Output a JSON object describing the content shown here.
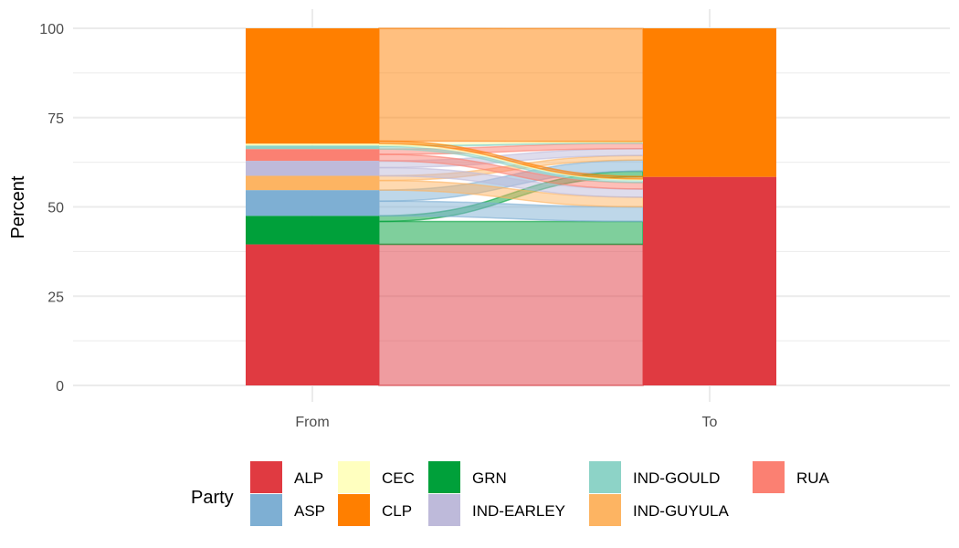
{
  "chart_data": {
    "type": "alluvial",
    "ylabel": "Percent",
    "xlabel": "",
    "x_categories": [
      "From",
      "To"
    ],
    "ylim": [
      0,
      100
    ],
    "y_ticks": [
      0,
      25,
      50,
      75,
      100
    ],
    "grid": true,
    "legend_title": "Party",
    "legend_position": "bottom",
    "colors": {
      "ALP": "#e03a41",
      "ASP": "#7eafd3",
      "CEC": "#ffffbf",
      "CLP": "#ff7f00",
      "GRN": "#00a03a",
      "IND-EARLEY": "#bebada",
      "IND-GOULD": "#8dd3c7",
      "IND-GUYULA": "#fdb462",
      "RUA": "#fb8072"
    },
    "legend": [
      {
        "name": "ALP"
      },
      {
        "name": "ASP"
      },
      {
        "name": "CEC"
      },
      {
        "name": "CLP"
      },
      {
        "name": "GRN"
      },
      {
        "name": "IND-EARLEY"
      },
      {
        "name": "IND-GOULD"
      },
      {
        "name": "IND-GUYULA"
      },
      {
        "name": "RUA"
      }
    ],
    "from_stack": [
      {
        "party": "ALP",
        "value": 39.5
      },
      {
        "party": "GRN",
        "value": 8.0
      },
      {
        "party": "ASP",
        "value": 7.2
      },
      {
        "party": "IND-GUYULA",
        "value": 4.0
      },
      {
        "party": "IND-EARLEY",
        "value": 4.2
      },
      {
        "party": "RUA",
        "value": 3.3
      },
      {
        "party": "IND-GOULD",
        "value": 1.0
      },
      {
        "party": "CEC",
        "value": 0.5
      },
      {
        "party": "CLP",
        "value": 32.3
      }
    ],
    "to_stack": [
      {
        "party": "ALP",
        "value": 58.4
      },
      {
        "party": "CLP",
        "value": 41.6
      }
    ],
    "flows": [
      {
        "from": "ALP",
        "to": "ALP",
        "value": 39.5
      },
      {
        "from": "GRN",
        "to": "ALP",
        "value": 6.4
      },
      {
        "from": "GRN",
        "to": "CLP",
        "value": 1.6
      },
      {
        "from": "ASP",
        "to": "ALP",
        "value": 4.1
      },
      {
        "from": "ASP",
        "to": "CLP",
        "value": 3.1
      },
      {
        "from": "IND-GUYULA",
        "to": "ALP",
        "value": 2.7
      },
      {
        "from": "IND-GUYULA",
        "to": "CLP",
        "value": 1.3
      },
      {
        "from": "IND-EARLEY",
        "to": "ALP",
        "value": 2.3
      },
      {
        "from": "IND-EARLEY",
        "to": "CLP",
        "value": 1.9
      },
      {
        "from": "RUA",
        "to": "ALP",
        "value": 1.8
      },
      {
        "from": "RUA",
        "to": "CLP",
        "value": 1.5
      },
      {
        "from": "IND-GOULD",
        "to": "ALP",
        "value": 0.7
      },
      {
        "from": "IND-GOULD",
        "to": "CLP",
        "value": 0.3
      },
      {
        "from": "CEC",
        "to": "ALP",
        "value": 0.3
      },
      {
        "from": "CEC",
        "to": "CLP",
        "value": 0.2
      },
      {
        "from": "CLP",
        "to": "CLP",
        "value": 31.6
      },
      {
        "from": "CLP",
        "to": "ALP",
        "value": 0.7
      }
    ]
  }
}
